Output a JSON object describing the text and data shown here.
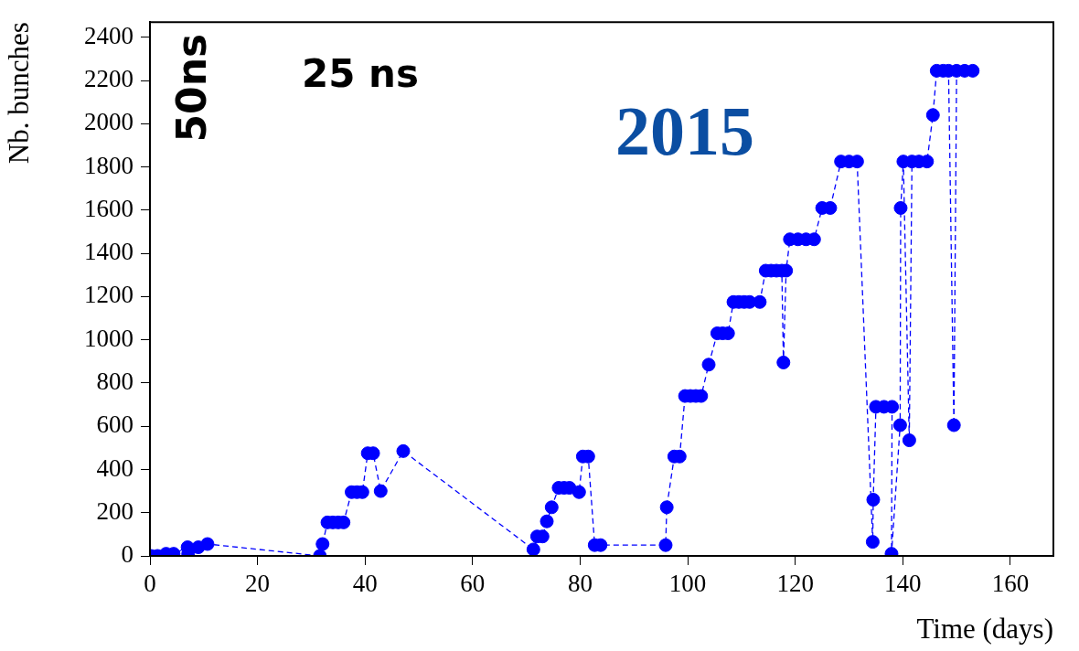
{
  "chart_data": {
    "type": "line",
    "xlabel": "Time (days)",
    "ylabel": "Nb. bunches",
    "annotations": [
      "50ns",
      "25 ns",
      "2015"
    ],
    "x": [
      0.2,
      1.4,
      3,
      4.4,
      7,
      7.1,
      9,
      10.7,
      31.6,
      32.1,
      33,
      34,
      35,
      36,
      37.5,
      38.5,
      39.5,
      40.5,
      41.5,
      42.9,
      47.1,
      71.3,
      72,
      73,
      73.8,
      74.7,
      76,
      77,
      78,
      79.8,
      80.5,
      81.5,
      82.7,
      83.8,
      95.9,
      96.1,
      97.5,
      98.5,
      99.5,
      100.5,
      101.5,
      102.5,
      103.9,
      105.5,
      106.5,
      107.5,
      108.5,
      109.5,
      110.5,
      111.5,
      113.4,
      114.5,
      115.5,
      116.5,
      117.5,
      117.8,
      118.3,
      119,
      120.5,
      122,
      123.5,
      125,
      126.5,
      128.5,
      130,
      131.5,
      134.4,
      134.5,
      135,
      136.5,
      138,
      137.9,
      139.5,
      139.6,
      140.1,
      141.2,
      141.7,
      143,
      144.5,
      145.6,
      146.3,
      147.5,
      148.5,
      149.5,
      150,
      151.5,
      153
    ],
    "series": [
      {
        "color": "#0000ff",
        "values": [
          0,
          0,
          10,
          10,
          40,
          10,
          40,
          55,
          0,
          55,
          155,
          155,
          155,
          155,
          295,
          295,
          295,
          475,
          475,
          300,
          485,
          30,
          90,
          90,
          160,
          225,
          315,
          315,
          315,
          295,
          460,
          460,
          50,
          50,
          50,
          225,
          460,
          460,
          740,
          740,
          740,
          740,
          885,
          1030,
          1030,
          1030,
          1175,
          1175,
          1175,
          1175,
          1175,
          1320,
          1320,
          1320,
          1320,
          895,
          1320,
          1465,
          1465,
          1465,
          1465,
          1610,
          1610,
          1825,
          1825,
          1825,
          65,
          260,
          690,
          690,
          690,
          10,
          605,
          1610,
          1825,
          535,
          1825,
          1825,
          1825,
          2040,
          2245,
          2245,
          2245,
          605,
          2245,
          2245,
          2245
        ]
      }
    ],
    "xlim": [
      0,
      168
    ],
    "ylim": [
      0,
      2470
    ],
    "xticks": [
      0,
      20,
      40,
      60,
      80,
      100,
      120,
      140,
      160
    ],
    "yticks": [
      0,
      200,
      400,
      600,
      800,
      1000,
      1200,
      1400,
      1600,
      1800,
      2000,
      2200,
      2400
    ],
    "grid": false,
    "legend": false,
    "marker": "circle",
    "line_style": "dashed"
  }
}
